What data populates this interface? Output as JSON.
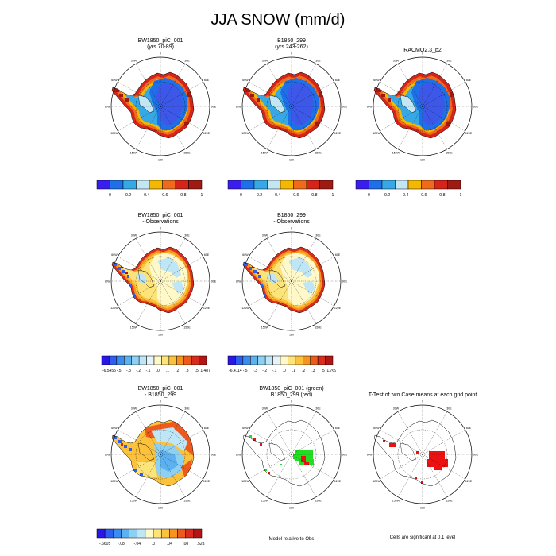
{
  "title": "JJA SNOW (mm/d)",
  "panels": [
    {
      "id": "p1",
      "title_lines": [
        "BW1850_piC_001",
        "(yrs 70-89)"
      ],
      "kind": "abs"
    },
    {
      "id": "p2",
      "title_lines": [
        "B1850_299",
        "(yrs 243-262)"
      ],
      "kind": "abs"
    },
    {
      "id": "p3",
      "title_lines": [
        "RACMO2.3_p2"
      ],
      "kind": "abs"
    },
    {
      "id": "p4",
      "title_lines": [
        "BW1850_piC_001",
        "- Observations"
      ],
      "kind": "bias"
    },
    {
      "id": "p5",
      "title_lines": [
        "B1850_299",
        "- Observations"
      ],
      "kind": "bias"
    },
    {
      "id": "p6",
      "title_lines": [
        "BW1850_piC_001",
        "- B1850_299"
      ],
      "kind": "diff"
    },
    {
      "id": "p7",
      "title_lines": [
        "BW1850_piC_001 (green)",
        "B1850_299 (red)"
      ],
      "kind": "sig2"
    },
    {
      "id": "p8",
      "title_lines": [
        "T-Test of two Case means at each grid point"
      ],
      "kind": "sig1"
    }
  ],
  "lon_labels": [
    "0",
    "30E",
    "60E",
    "90E",
    "120E",
    "150E",
    "180",
    "150W",
    "120W",
    "90W",
    "60W",
    "30W"
  ],
  "colorbars": {
    "abs": {
      "colors": [
        "#3a1ef0",
        "#1f6fe8",
        "#36a8e6",
        "#c3e6f5",
        "#f5b800",
        "#ef6a1a",
        "#d62418",
        "#a01a14"
      ],
      "labels": [
        "0",
        "0.2",
        "0.4",
        "0.6",
        "0.8",
        "1"
      ]
    },
    "bias1": {
      "colors": [
        "#2a16e6",
        "#2e5ef0",
        "#3a8cf0",
        "#5cb2f0",
        "#8ed0f2",
        "#bfe6f6",
        "#e4f4fa",
        "#fff8c8",
        "#fde47a",
        "#fcc23c",
        "#f7941e",
        "#ee5a1e",
        "#d92c1a",
        "#b51414"
      ],
      "labels": [
        "-6.5455",
        "-.5",
        "-.3",
        "-.2",
        "-.1",
        ".0",
        ".1",
        ".2",
        ".3",
        ".5",
        "1.4871"
      ]
    },
    "bias2": {
      "colors": [
        "#2a16e6",
        "#2e5ef0",
        "#3a8cf0",
        "#5cb2f0",
        "#8ed0f2",
        "#bfe6f6",
        "#e4f4fa",
        "#fff8c8",
        "#fde47a",
        "#fcc23c",
        "#f7941e",
        "#ee5a1e",
        "#d92c1a",
        "#b51414"
      ],
      "labels": [
        "-6.4114",
        "-.5",
        "-.3",
        "-.2",
        "-.1",
        ".0",
        ".1",
        ".2",
        ".3",
        ".5",
        "1.7695"
      ]
    },
    "diff": {
      "colors": [
        "#2a16e6",
        "#2e5ef0",
        "#3a8cf0",
        "#5cb2f0",
        "#8ed0f2",
        "#bfe6f6",
        "#fff8c8",
        "#fde47a",
        "#fcc23c",
        "#f7941e",
        "#ee5a1e",
        "#d92c1a",
        "#b51414"
      ],
      "labels": [
        "-.6605",
        "-.08",
        "-.04",
        ".0",
        ".04",
        ".08",
        ".5282"
      ]
    }
  },
  "captions": {
    "model_relative": "Model relative to Obs",
    "significance": "Cells are significant at 0.1 level"
  },
  "field_colors": {
    "sig_green": "#22dd22",
    "sig_red": "#ee1111"
  }
}
